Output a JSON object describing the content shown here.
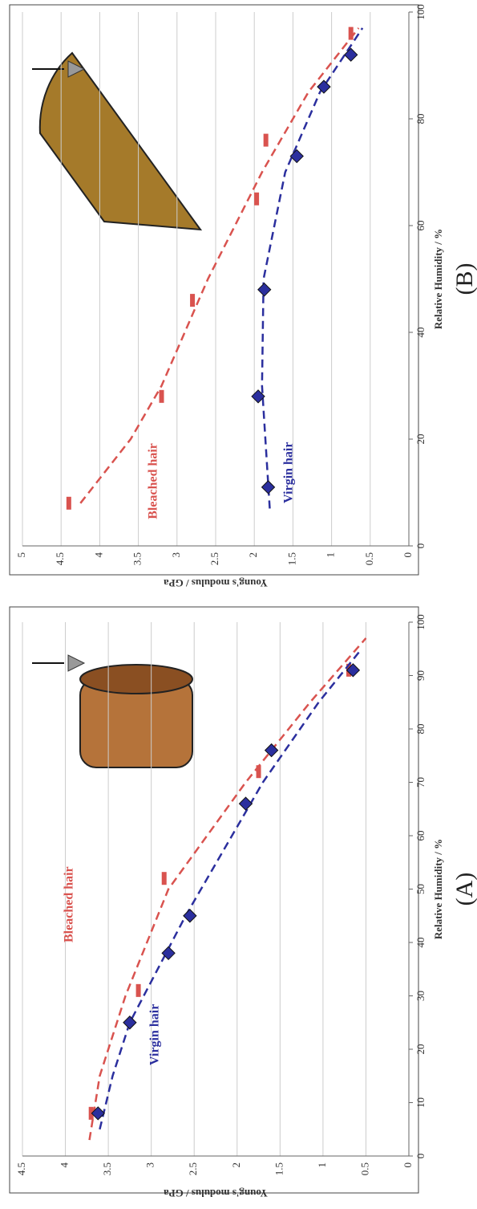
{
  "chart_data": [
    {
      "type": "scatter",
      "panel": "(A)",
      "x_label": "Relative Humidity / %",
      "y_label": "Young's modulus / GPa",
      "xlim": [
        0,
        100
      ],
      "xticks": [
        0,
        10,
        20,
        30,
        40,
        50,
        60,
        70,
        80,
        90,
        100
      ],
      "ylim": [
        0,
        4.5
      ],
      "yticks": [
        0,
        0.5,
        1,
        1.5,
        2,
        2.5,
        3,
        3.5,
        4,
        4.5
      ],
      "grid": true,
      "series": [
        {
          "name": "Bleached hair",
          "color": "#d9534f",
          "marker": "dash",
          "x": [
            8,
            31,
            52,
            72,
            91
          ],
          "values": [
            3.7,
            3.15,
            2.85,
            1.75,
            0.7
          ],
          "fit_x": [
            3,
            15,
            30,
            50,
            70,
            85,
            97
          ],
          "fit_values": [
            3.72,
            3.6,
            3.3,
            2.8,
            1.9,
            1.15,
            0.5
          ]
        },
        {
          "name": "Virgin hair",
          "color": "#2b2f9e",
          "marker": "diamond",
          "x": [
            8,
            25,
            38,
            45,
            66,
            76,
            91
          ],
          "values": [
            3.62,
            3.25,
            2.8,
            2.55,
            1.9,
            1.6,
            0.65
          ],
          "fit_x": [
            5,
            15,
            25,
            45,
            70,
            85,
            95
          ],
          "fit_values": [
            3.6,
            3.45,
            3.25,
            2.6,
            1.7,
            1.05,
            0.55
          ]
        }
      ]
    },
    {
      "type": "scatter",
      "panel": "(B)",
      "x_label": "Relative Humidity / %",
      "y_label": "Young's modulus / GPa",
      "xlim": [
        0,
        100
      ],
      "xticks": [
        0,
        20,
        40,
        60,
        80,
        100
      ],
      "ylim": [
        0,
        5
      ],
      "yticks": [
        0,
        0.5,
        1,
        1.5,
        2,
        2.5,
        3,
        3.5,
        4,
        4.5,
        5
      ],
      "grid": true,
      "series": [
        {
          "name": "Bleached hair",
          "color": "#d9534f",
          "marker": "dash",
          "x": [
            8,
            28,
            46,
            65,
            76,
            96
          ],
          "values": [
            4.4,
            3.2,
            2.8,
            1.97,
            1.85,
            0.75
          ],
          "fit_x": [
            8,
            20,
            30,
            50,
            70,
            85,
            97
          ],
          "fit_values": [
            4.25,
            3.6,
            3.2,
            2.6,
            1.9,
            1.3,
            0.65
          ]
        },
        {
          "name": "Virgin hair",
          "color": "#2b2f9e",
          "marker": "diamond",
          "x": [
            11,
            28,
            48,
            73,
            86,
            92
          ],
          "values": [
            1.82,
            1.95,
            1.87,
            1.45,
            1.1,
            0.75
          ],
          "fit_x": [
            7,
            30,
            50,
            70,
            85,
            97
          ],
          "fit_values": [
            1.8,
            1.9,
            1.88,
            1.6,
            1.15,
            0.6
          ]
        }
      ]
    }
  ]
}
